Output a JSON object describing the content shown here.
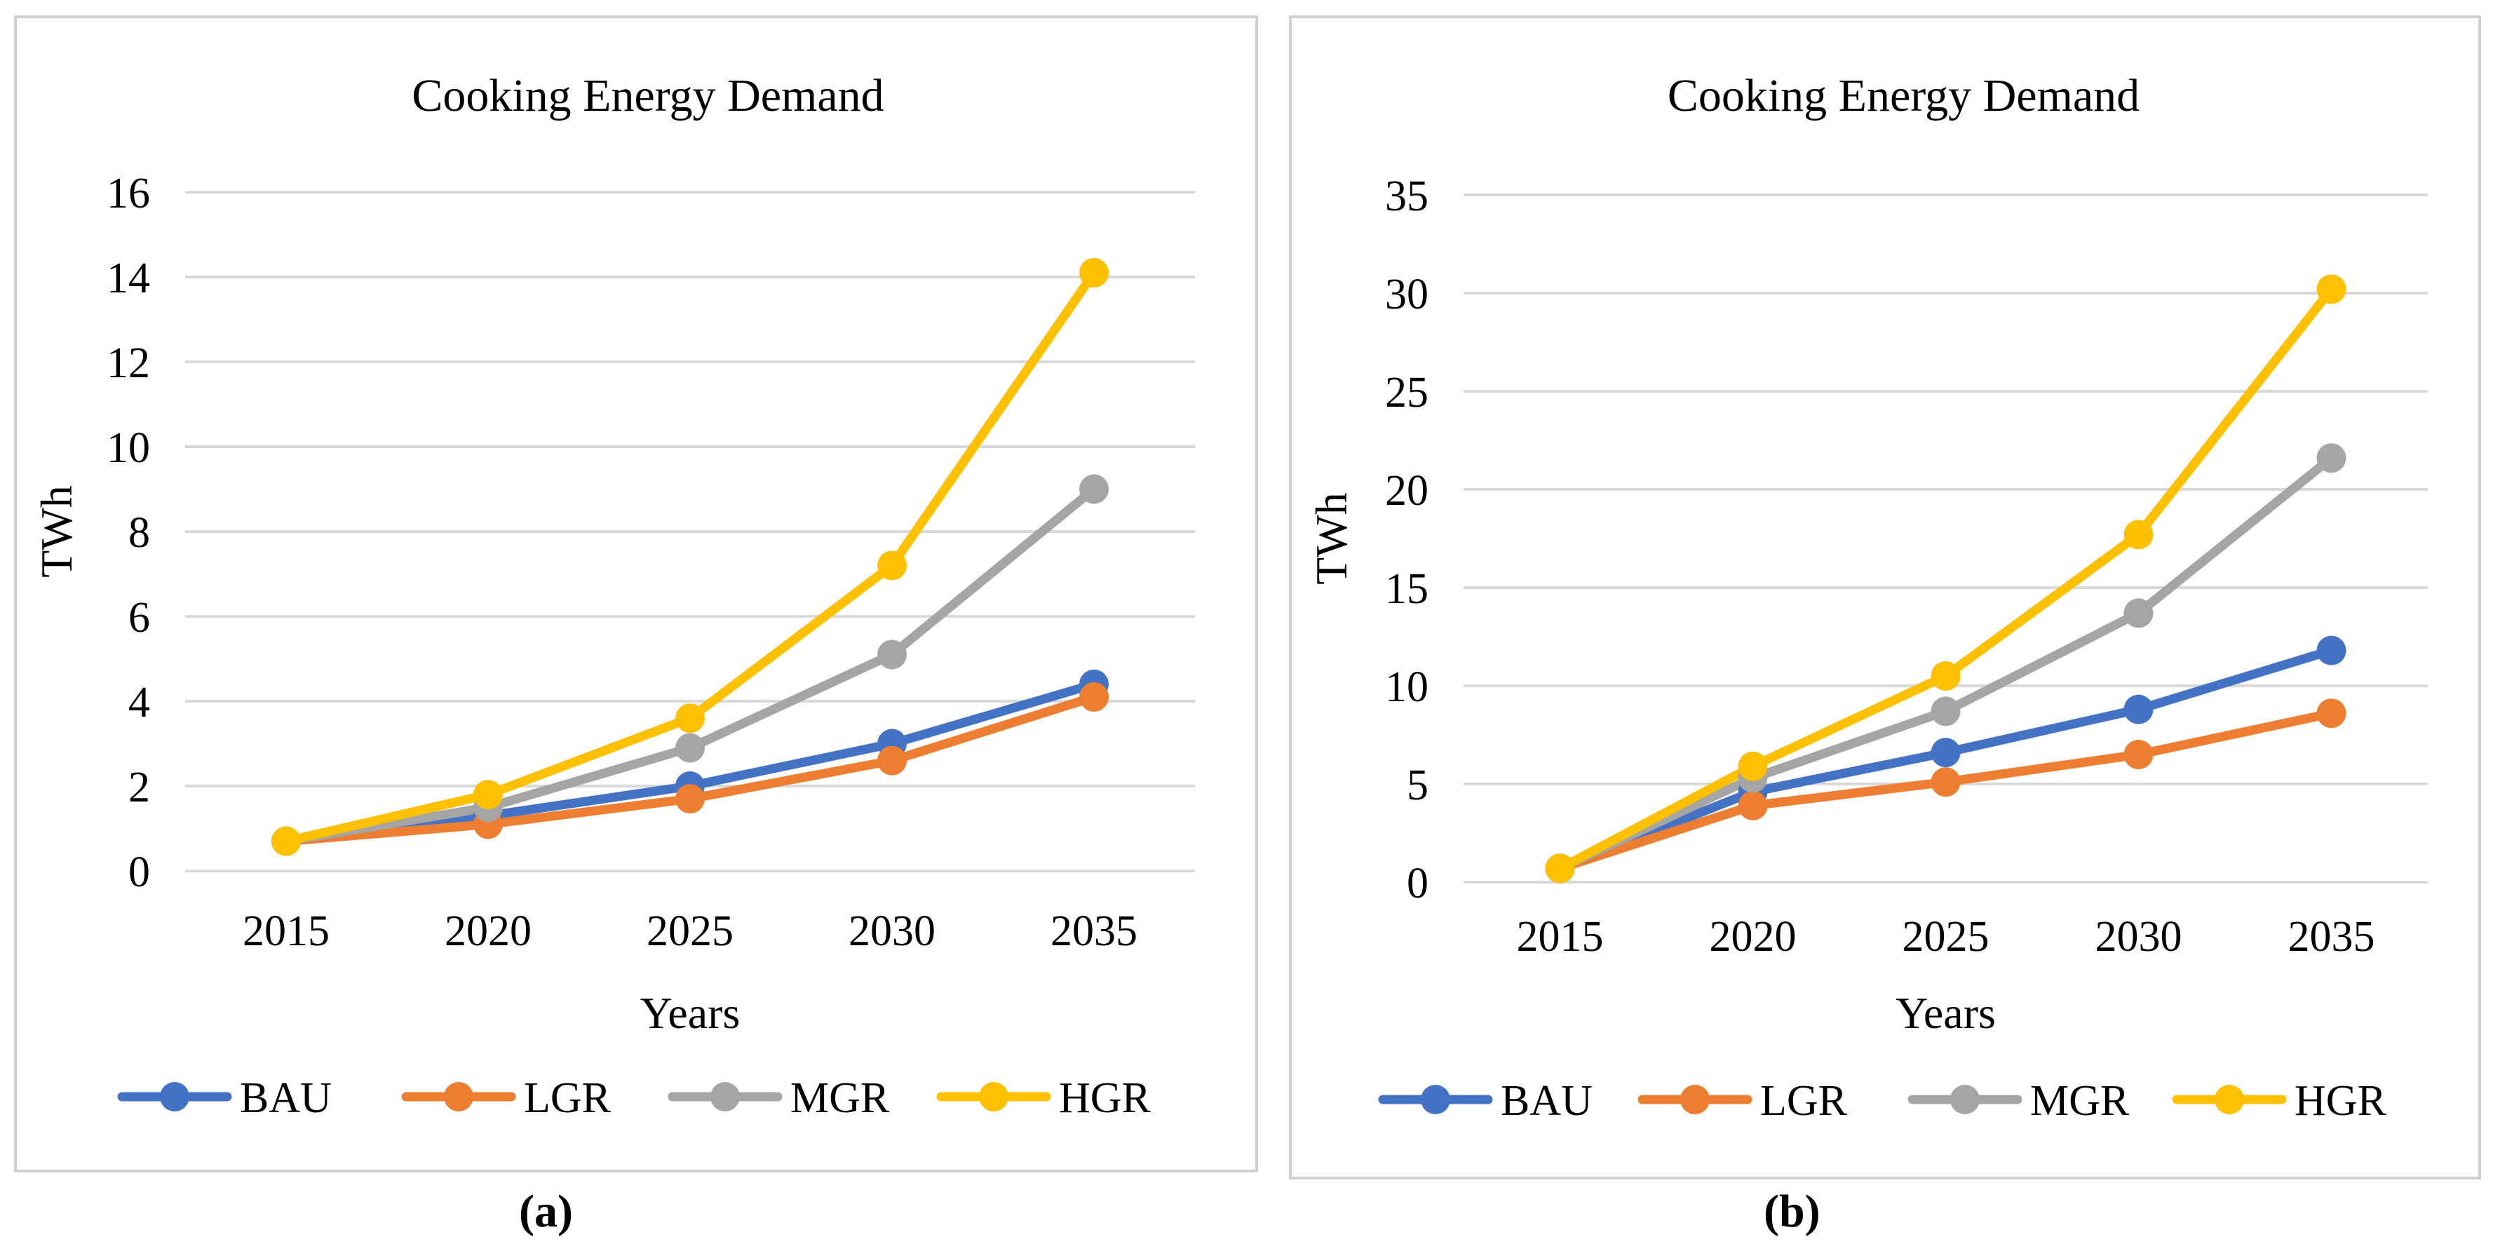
{
  "colors": {
    "BAU": "#4472C4",
    "LGR": "#ED7D31",
    "MGR": "#A5A5A5",
    "HGR": "#FFC000",
    "grid": "#d9d9d9"
  },
  "chart_data": [
    {
      "type": "line",
      "panel": "a",
      "title": "Cooking Energy Demand",
      "xlabel": "Years",
      "ylabel": "TWh",
      "categories": [
        "2015",
        "2020",
        "2025",
        "2030",
        "2035"
      ],
      "ylim": [
        0,
        16
      ],
      "yticks": [
        0,
        2,
        4,
        6,
        8,
        10,
        12,
        14,
        16
      ],
      "legend_position": "bottom",
      "series": [
        {
          "name": "BAU",
          "color": "#4472C4",
          "values": [
            0.7,
            1.3,
            2.0,
            3.0,
            4.4
          ]
        },
        {
          "name": "LGR",
          "color": "#ED7D31",
          "values": [
            0.7,
            1.1,
            1.7,
            2.6,
            4.1
          ]
        },
        {
          "name": "MGR",
          "color": "#A5A5A5",
          "values": [
            0.7,
            1.5,
            2.9,
            5.1,
            9.0
          ]
        },
        {
          "name": "HGR",
          "color": "#FFC000",
          "values": [
            0.7,
            1.8,
            3.6,
            7.2,
            14.1
          ]
        }
      ]
    },
    {
      "type": "line",
      "panel": "b",
      "title": "Cooking Energy Demand",
      "xlabel": "Years",
      "ylabel": "TWh",
      "categories": [
        "2015",
        "2020",
        "2025",
        "2030",
        "2035"
      ],
      "ylim": [
        0,
        35
      ],
      "yticks": [
        0,
        5,
        10,
        15,
        20,
        25,
        30,
        35
      ],
      "legend_position": "bottom",
      "series": [
        {
          "name": "BAU",
          "color": "#4472C4",
          "values": [
            0.7,
            4.6,
            6.6,
            8.8,
            11.8
          ]
        },
        {
          "name": "LGR",
          "color": "#ED7D31",
          "values": [
            0.7,
            3.9,
            5.1,
            6.5,
            8.6
          ]
        },
        {
          "name": "MGR",
          "color": "#A5A5A5",
          "values": [
            0.7,
            5.3,
            8.7,
            13.7,
            21.6
          ]
        },
        {
          "name": "HGR",
          "color": "#FFC000",
          "values": [
            0.7,
            5.9,
            10.5,
            17.7,
            30.2
          ]
        }
      ]
    }
  ],
  "captions": {
    "a": "(a)",
    "b": "(b)"
  }
}
